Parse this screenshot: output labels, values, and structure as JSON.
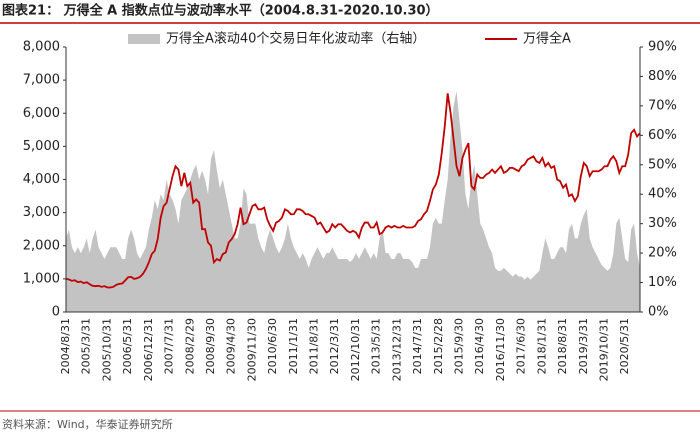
{
  "chart_data": {
    "type": "area_line",
    "title": "图表21：  万得全 A 指数点位与波动率水平（2004.8.31-2020.10.30）",
    "source": "资料来源：Wind，华泰证券研究所",
    "categories": [
      "2004/8/31",
      null,
      null,
      null,
      null,
      null,
      null,
      "2005/3/31",
      null,
      null,
      null,
      null,
      null,
      null,
      "2005/10/31",
      null,
      null,
      null,
      null,
      null,
      null,
      "2006/5/31",
      null,
      null,
      null,
      null,
      null,
      null,
      "2006/12/31",
      null,
      null,
      null,
      null,
      null,
      null,
      "2007/7/31",
      null,
      null,
      null,
      null,
      null,
      null,
      "2008/2/29",
      null,
      null,
      null,
      null,
      null,
      null,
      "2008/9/30",
      null,
      null,
      null,
      null,
      null,
      null,
      "2009/4/30",
      null,
      null,
      null,
      null,
      null,
      null,
      "2009/11/30",
      null,
      null,
      null,
      null,
      null,
      null,
      "2010/6/30",
      null,
      null,
      null,
      null,
      null,
      null,
      "2011/1/31",
      null,
      null,
      null,
      null,
      null,
      null,
      "2011/8/31",
      null,
      null,
      null,
      null,
      null,
      null,
      "2012/3/31",
      null,
      null,
      null,
      null,
      null,
      null,
      "2012/10/31",
      null,
      null,
      null,
      null,
      null,
      null,
      "2013/5/31",
      null,
      null,
      null,
      null,
      null,
      null,
      "2013/12/31",
      null,
      null,
      null,
      null,
      null,
      null,
      "2014/7/31",
      null,
      null,
      null,
      null,
      null,
      null,
      "2015/2/28",
      null,
      null,
      null,
      null,
      null,
      null,
      "2015/9/30",
      null,
      null,
      null,
      null,
      null,
      null,
      "2016/4/30",
      null,
      null,
      null,
      null,
      null,
      null,
      "2016/11/30",
      null,
      null,
      null,
      null,
      null,
      null,
      "2017/6/30",
      null,
      null,
      null,
      null,
      null,
      null,
      "2018/1/31",
      null,
      null,
      null,
      null,
      null,
      null,
      "2018/8/31",
      null,
      null,
      null,
      null,
      null,
      null,
      "2019/3/31",
      null,
      null,
      null,
      null,
      null,
      null,
      "2019/10/31",
      null,
      null,
      null,
      null,
      null,
      null,
      "2020/5/31",
      null,
      null,
      null,
      null,
      null
    ],
    "series": [
      {
        "name": "万得全A滚动40个交易日年化波动率（右轴）",
        "color": "#c3c3c3",
        "axis": "y2",
        "kind": "area",
        "values": [
          25,
          28,
          22,
          20,
          22,
          20,
          22,
          25,
          20,
          25,
          28,
          22,
          20,
          18,
          20,
          22,
          22,
          22,
          20,
          18,
          18,
          25,
          28,
          25,
          20,
          18,
          20,
          22,
          28,
          32,
          38,
          35,
          40,
          38,
          45,
          40,
          38,
          35,
          30,
          38,
          40,
          42,
          45,
          48,
          50,
          45,
          48,
          45,
          40,
          52,
          55,
          48,
          42,
          45,
          40,
          35,
          30,
          25,
          25,
          30,
          42,
          40,
          30,
          30,
          30,
          25,
          22,
          20,
          25,
          28,
          25,
          22,
          20,
          22,
          25,
          30,
          25,
          22,
          20,
          18,
          20,
          18,
          15,
          18,
          20,
          22,
          20,
          18,
          20,
          20,
          22,
          20,
          18,
          18,
          18,
          18,
          17,
          18,
          20,
          18,
          20,
          22,
          20,
          18,
          20,
          18,
          25,
          28,
          20,
          20,
          18,
          18,
          20,
          20,
          18,
          18,
          18,
          17,
          15,
          15,
          18,
          18,
          18,
          22,
          30,
          32,
          30,
          30,
          38,
          45,
          60,
          70,
          75,
          65,
          55,
          40,
          35,
          45,
          50,
          40,
          30,
          28,
          25,
          22,
          20,
          15,
          14,
          14,
          15,
          14,
          13,
          12,
          13,
          12,
          12,
          11,
          12,
          11,
          12,
          13,
          14,
          20,
          25,
          22,
          18,
          18,
          20,
          22,
          22,
          20,
          28,
          30,
          25,
          25,
          30,
          33,
          35,
          25,
          22,
          20,
          18,
          16,
          15,
          14,
          15,
          20,
          30,
          32,
          25,
          18,
          17,
          28,
          30,
          20,
          15
        ]
      },
      {
        "name": "万得全A",
        "color": "#c00000",
        "axis": "y",
        "kind": "line",
        "values": [
          1000,
          980,
          940,
          960,
          900,
          920,
          870,
          900,
          840,
          790,
          780,
          790,
          760,
          780,
          740,
          740,
          760,
          820,
          850,
          860,
          950,
          1050,
          1060,
          1000,
          1020,
          1060,
          1150,
          1300,
          1500,
          1750,
          1850,
          2200,
          2850,
          3200,
          3300,
          3700,
          4100,
          4400,
          4300,
          3800,
          4200,
          3800,
          3900,
          3300,
          3400,
          3300,
          2500,
          2500,
          2100,
          2000,
          1500,
          1600,
          1550,
          1750,
          1800,
          2100,
          2200,
          2350,
          2650,
          3150,
          2650,
          2700,
          2950,
          3200,
          3250,
          3100,
          3100,
          3150,
          2800,
          2600,
          2450,
          2700,
          2750,
          2850,
          3100,
          3050,
          2950,
          2950,
          3100,
          3100,
          3050,
          2950,
          2950,
          2900,
          2850,
          2650,
          2700,
          2550,
          2400,
          2450,
          2650,
          2550,
          2650,
          2650,
          2550,
          2450,
          2400,
          2450,
          2400,
          2250,
          2550,
          2700,
          2700,
          2550,
          2550,
          2700,
          2350,
          2400,
          2550,
          2600,
          2550,
          2600,
          2550,
          2550,
          2600,
          2550,
          2550,
          2550,
          2600,
          2750,
          2800,
          2950,
          3050,
          3350,
          3700,
          3850,
          4150,
          4800,
          5600,
          6600,
          6000,
          5200,
          4400,
          4100,
          4650,
          4900,
          5100,
          3800,
          3700,
          4150,
          4050,
          4050,
          4150,
          4200,
          4300,
          4200,
          4300,
          4400,
          4200,
          4250,
          4350,
          4350,
          4300,
          4250,
          4400,
          4450,
          4600,
          4650,
          4700,
          4550,
          4500,
          4650,
          4400,
          4500,
          4350,
          4400,
          4000,
          3950,
          3750,
          3850,
          3500,
          3550,
          3350,
          3500,
          4100,
          4500,
          4400,
          4100,
          4250,
          4250,
          4250,
          4300,
          4400,
          4400,
          4600,
          4700,
          4550,
          4200,
          4400,
          4400,
          4750,
          5400,
          5500,
          5300,
          5400
        ]
      }
    ],
    "ylim": [
      0,
      8000
    ],
    "yticks": [
      0,
      {
        "value": 1000,
        "label": "1,000"
      },
      {
        "value": 2000,
        "label": "2,000"
      },
      {
        "value": 3000,
        "label": "3,000"
      },
      {
        "value": 4000,
        "label": "4,000"
      },
      {
        "value": 5000,
        "label": "5,000"
      },
      {
        "value": 6000,
        "label": "6,000"
      },
      {
        "value": 7000,
        "label": "7,000"
      },
      {
        "value": 8000,
        "label": "8,000"
      }
    ],
    "y2lim": [
      0,
      90
    ],
    "y2ticks": [
      {
        "value": 0,
        "label": "0%"
      },
      {
        "value": 10,
        "label": "10%"
      },
      {
        "value": 20,
        "label": "20%"
      },
      {
        "value": 30,
        "label": "30%"
      },
      {
        "value": 40,
        "label": "40%"
      },
      {
        "value": 50,
        "label": "50%"
      },
      {
        "value": 60,
        "label": "60%"
      },
      {
        "value": 70,
        "label": "70%"
      },
      {
        "value": 80,
        "label": "80%"
      },
      {
        "value": 90,
        "label": "90%"
      }
    ]
  }
}
